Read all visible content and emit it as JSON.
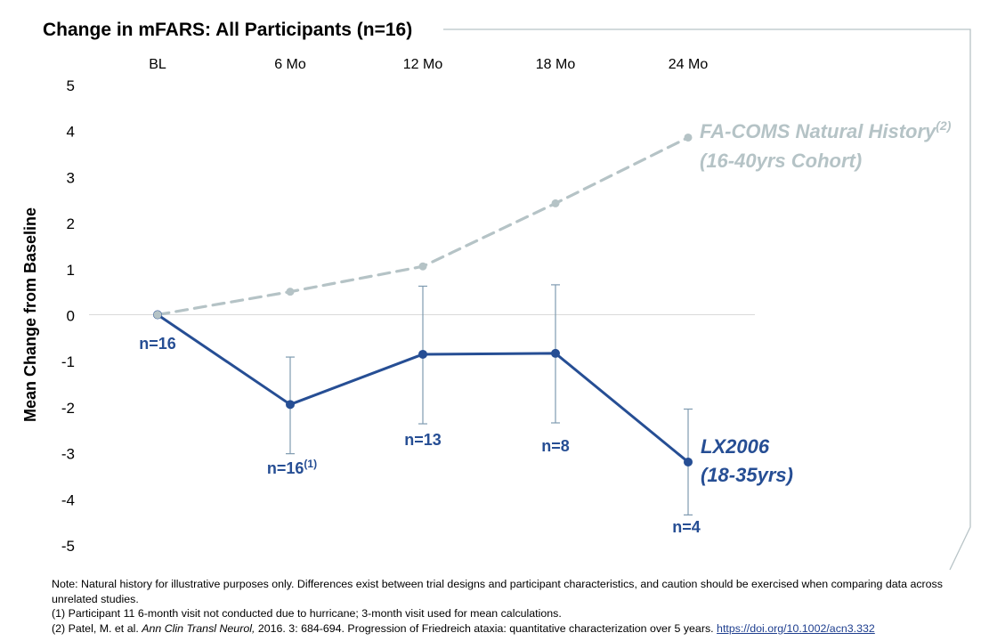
{
  "chart_data": {
    "type": "line",
    "title": "Change in mFARS: All Participants (n=16)",
    "xlabel": "",
    "ylabel": "Mean Change from Baseline",
    "categories": [
      "BL",
      "6 Mo",
      "12 Mo",
      "18 Mo",
      "24 Mo"
    ],
    "ylim": [
      -5,
      5
    ],
    "yticks": [
      5,
      4,
      3,
      2,
      1,
      0,
      -1,
      -2,
      -3,
      -4,
      -5
    ],
    "ytick_labels": [
      "5",
      "4",
      "3",
      "2",
      "1",
      "0",
      "-1",
      "-2",
      "-3",
      "-4",
      "-5"
    ],
    "series": [
      {
        "name": "FA-COMS Natural History",
        "name_superscript": "(2)",
        "name_line2": "(16-40yrs Cohort)",
        "style": "dashed",
        "color": "#b5c3c6",
        "values": [
          0,
          0.5,
          1.05,
          2.42,
          3.85
        ]
      },
      {
        "name": "LX2006",
        "name_line2": "(18-35yrs)",
        "style": "solid",
        "color": "#264e94",
        "values": [
          0,
          -1.95,
          -0.86,
          -0.84,
          -3.2
        ],
        "error_low": [
          null,
          -3.02,
          -2.37,
          -2.35,
          -4.35
        ],
        "error_high": [
          null,
          -0.92,
          0.62,
          0.65,
          -2.05
        ],
        "n_labels": [
          {
            "text": "n=16",
            "sup": ""
          },
          {
            "text": "n=16",
            "sup": "(1)"
          },
          {
            "text": "n=13",
            "sup": ""
          },
          {
            "text": "n=8",
            "sup": ""
          },
          {
            "text": "n=4",
            "sup": ""
          }
        ]
      }
    ],
    "grid": false,
    "legend": "inline-labels"
  },
  "footnotes": {
    "note": "Note: Natural history for illustrative purposes only. Differences exist between trial designs and participant characteristics, and caution should be exercised when comparing data across unrelated studies.",
    "fn1": "(1) Participant 11 6-month visit not conducted due to hurricane; 3-month visit used for mean calculations.",
    "fn2_prefix": "(2) Patel, M. et al. ",
    "fn2_journal": "Ann Clin Transl Neurol,",
    "fn2_rest": " 2016. 3: 684-694. Progression of Friedreich ataxia: quantitative characterization over 5 years. ",
    "fn2_link": "https://doi.org/10.1002/acn3.332"
  },
  "colors": {
    "frame": "#b8c4c7",
    "axis_zero": "#d9d9d9",
    "lx_series": "#264e94",
    "nh_series": "#b5c3c6",
    "error_bar": "#7f9bb0"
  }
}
